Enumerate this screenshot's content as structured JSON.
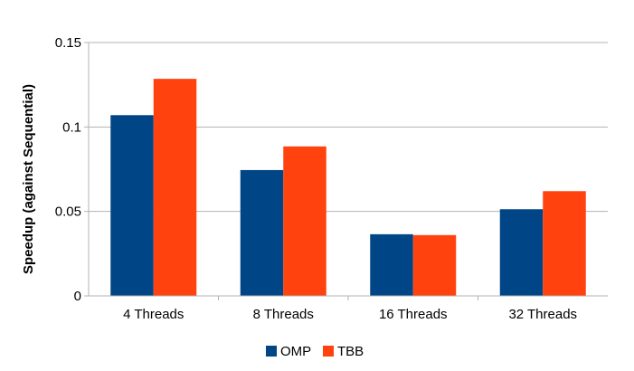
{
  "chart_data": {
    "type": "bar",
    "categories": [
      "4 Threads",
      "8 Threads",
      "16 Threads",
      "32 Threads"
    ],
    "series": [
      {
        "name": "OMP",
        "values": [
          0.107,
          0.0745,
          0.0365,
          0.0513
        ],
        "color": "#004586"
      },
      {
        "name": "TBB",
        "values": [
          0.1285,
          0.0885,
          0.036,
          0.062
        ],
        "color": "#ff420e"
      }
    ],
    "ylabel": "Speedup (against Sequential)",
    "ylim": [
      0,
      0.15
    ],
    "yticks": [
      0,
      0.05,
      0.1,
      0.15
    ],
    "ytick_labels": [
      "0",
      "0.05",
      "0.1",
      "0.15"
    ],
    "grid": true,
    "legend_position": "bottom-center"
  }
}
